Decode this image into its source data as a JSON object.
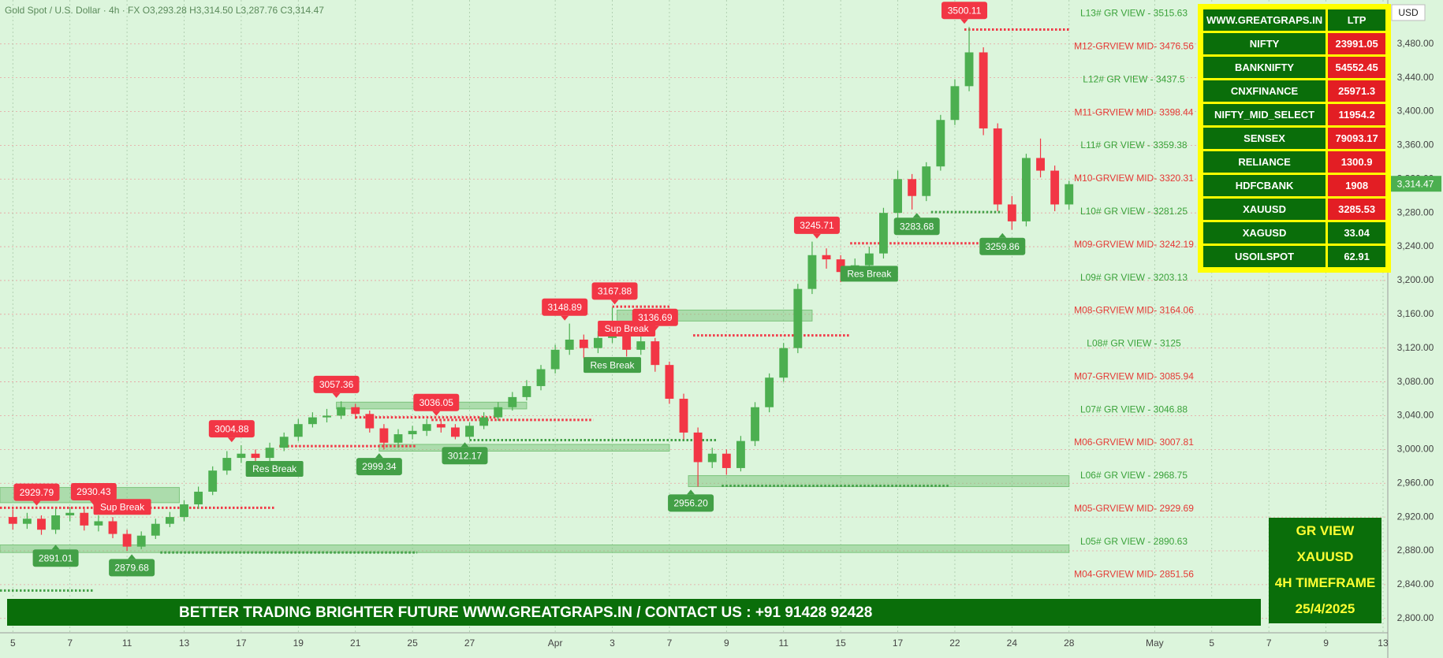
{
  "header": "Gold Spot / U.S. Dollar · 4h · FX  O3,293.28 H3,314.50 L3,287.76 C3,314.47",
  "chart_data": {
    "type": "candlestick",
    "x": [
      0,
      3,
      6,
      9,
      12,
      15,
      18,
      21,
      24,
      27,
      30,
      33,
      36,
      39,
      42,
      45,
      48,
      51,
      54,
      57,
      60,
      63,
      66,
      69,
      72,
      75,
      78,
      81,
      84,
      87,
      90,
      93,
      96,
      99,
      102,
      105,
      108,
      111,
      114,
      117,
      120,
      123,
      126,
      129,
      132,
      135,
      138,
      141,
      144,
      147,
      150,
      153,
      156,
      159,
      162,
      165,
      168,
      171,
      174,
      177,
      180,
      183,
      186,
      189,
      192,
      195,
      198,
      201,
      204,
      207,
      210,
      213,
      216,
      219,
      222
    ],
    "open": [
      2920,
      2912,
      2918,
      2905,
      2922,
      2925,
      2910,
      2915,
      2900,
      2885,
      2898,
      2912,
      2920,
      2935,
      2950,
      2975,
      2990,
      2995,
      2990,
      3002,
      3015,
      3030,
      3038,
      3040,
      3050,
      3042,
      3025,
      3008,
      3018,
      3022,
      3030,
      3026,
      3015,
      3028,
      3038,
      3050,
      3062,
      3075,
      3095,
      3118,
      3130,
      3120,
      3132,
      3140,
      3118,
      3128,
      3100,
      3060,
      3020,
      2985,
      2995,
      2978,
      3010,
      3050,
      3085,
      3120,
      3190,
      3230,
      3225,
      3210,
      3218,
      3232,
      3280,
      3320,
      3300,
      3335,
      3390,
      3430,
      3470,
      3380,
      3290,
      3270,
      3345,
      3330,
      3290
    ],
    "high": [
      2929,
      2925,
      2922,
      2930,
      2932,
      2930,
      2922,
      2920,
      2905,
      2903,
      2918,
      2926,
      2940,
      2956,
      2980,
      2998,
      3005,
      3000,
      3008,
      3020,
      3036,
      3044,
      3048,
      3057,
      3054,
      3046,
      3030,
      3024,
      3028,
      3036,
      3034,
      3030,
      3032,
      3044,
      3056,
      3068,
      3082,
      3100,
      3124,
      3149,
      3136,
      3140,
      3168,
      3146,
      3137,
      3132,
      3104,
      3066,
      3026,
      3002,
      3000,
      3016,
      3056,
      3090,
      3126,
      3196,
      3246,
      3238,
      3230,
      3226,
      3240,
      3286,
      3330,
      3326,
      3340,
      3396,
      3438,
      3500,
      3476,
      3386,
      3300,
      3350,
      3368,
      3336,
      3318
    ],
    "low": [
      2905,
      2906,
      2899,
      2900,
      2915,
      2904,
      2903,
      2895,
      2880,
      2882,
      2894,
      2908,
      2915,
      2930,
      2946,
      2970,
      2984,
      2982,
      2986,
      2998,
      3010,
      3026,
      3032,
      3036,
      3036,
      3020,
      3000,
      3002,
      3012,
      3016,
      3020,
      3012,
      3012,
      3024,
      3034,
      3046,
      3058,
      3070,
      3090,
      3112,
      3108,
      3114,
      3126,
      3110,
      3112,
      3092,
      3054,
      3012,
      2956,
      2978,
      2970,
      2974,
      3004,
      3044,
      3080,
      3114,
      3184,
      3214,
      3198,
      3204,
      3212,
      3226,
      3274,
      3284,
      3294,
      3330,
      3384,
      3424,
      3372,
      3282,
      3260,
      3264,
      3322,
      3282,
      3284
    ],
    "close": [
      2912,
      2918,
      2905,
      2922,
      2925,
      2910,
      2915,
      2900,
      2885,
      2898,
      2912,
      2920,
      2935,
      2950,
      2975,
      2990,
      2995,
      2990,
      3002,
      3015,
      3030,
      3038,
      3040,
      3050,
      3042,
      3025,
      3008,
      3018,
      3022,
      3030,
      3026,
      3015,
      3028,
      3038,
      3050,
      3062,
      3075,
      3095,
      3118,
      3130,
      3120,
      3132,
      3140,
      3118,
      3128,
      3100,
      3060,
      3020,
      2985,
      2995,
      2978,
      3010,
      3050,
      3085,
      3120,
      3190,
      3230,
      3225,
      3210,
      3218,
      3232,
      3280,
      3320,
      3300,
      3335,
      3390,
      3430,
      3470,
      3380,
      3290,
      3270,
      3345,
      3330,
      3290,
      3314
    ],
    "up_color": "#4caf50",
    "down_color": "#f23645",
    "xlim": [
      -2.7,
      289
    ],
    "xticks": [
      {
        "value": 0,
        "label": "5"
      },
      {
        "value": 12,
        "label": "7"
      },
      {
        "value": 24,
        "label": "11"
      },
      {
        "value": 36,
        "label": "13"
      },
      {
        "value": 48,
        "label": "17"
      },
      {
        "value": 60,
        "label": "19"
      },
      {
        "value": 72,
        "label": "21"
      },
      {
        "value": 84,
        "label": "25"
      },
      {
        "value": 96,
        "label": "27"
      },
      {
        "value": 114,
        "label": "Apr"
      },
      {
        "value": 126,
        "label": "3"
      },
      {
        "value": 138,
        "label": "7"
      },
      {
        "value": 150,
        "label": "9"
      },
      {
        "value": 162,
        "label": "11"
      },
      {
        "value": 174,
        "label": "15"
      },
      {
        "value": 186,
        "label": "17"
      },
      {
        "value": 198,
        "label": "22"
      },
      {
        "value": 210,
        "label": "24"
      },
      {
        "value": 222,
        "label": "28"
      },
      {
        "value": 240,
        "label": "May"
      },
      {
        "value": 252,
        "label": "5"
      },
      {
        "value": 264,
        "label": "7"
      },
      {
        "value": 276,
        "label": "9"
      },
      {
        "value": 288,
        "label": "13"
      }
    ],
    "ylim": [
      2783,
      3532
    ],
    "yticks": [
      {
        "value": 2800,
        "label": "2,800.00"
      },
      {
        "value": 2840,
        "label": "2,840.00"
      },
      {
        "value": 2880,
        "label": "2,880.00"
      },
      {
        "value": 2920,
        "label": "2,920.00"
      },
      {
        "value": 2960,
        "label": "2,960.00"
      },
      {
        "value": 3000,
        "label": "3,000.00"
      },
      {
        "value": 3040,
        "label": "3,040.00"
      },
      {
        "value": 3080,
        "label": "3,080.00"
      },
      {
        "value": 3120,
        "label": "3,120.00"
      },
      {
        "value": 3160,
        "label": "3,160.00"
      },
      {
        "value": 3200,
        "label": "3,200.00"
      },
      {
        "value": 3240,
        "label": "3,240.00"
      },
      {
        "value": 3280,
        "label": "3,280.00"
      },
      {
        "value": 3320,
        "label": "3,320.00"
      },
      {
        "value": 3360,
        "label": "3,360.00"
      },
      {
        "value": 3400,
        "label": "3,400.00"
      },
      {
        "value": 3440,
        "label": "3,440.00"
      },
      {
        "value": 3480,
        "label": "3,480.00"
      }
    ],
    "grid": true,
    "y_axis_label": "USD",
    "last_price": {
      "value": 3314.47,
      "label": "3,314.47"
    },
    "callouts": {
      "x": [
        5,
        17,
        9,
        25,
        46,
        68,
        77,
        89,
        95,
        116,
        126.5,
        135,
        142.5,
        169,
        190,
        200,
        208
      ],
      "values": [
        2929.79,
        2930.43,
        2891.01,
        2879.68,
        3004.88,
        3057.36,
        2999.34,
        3036.05,
        3012.17,
        3148.89,
        3167.88,
        3136.69,
        2956.2,
        3245.71,
        3283.68,
        3500.11,
        3259.86
      ],
      "value_labels": [
        "2929.79",
        "2930.43",
        "2891.01",
        "2879.68",
        "3004.88",
        "3057.36",
        "2999.34",
        "3036.05",
        "3012.17",
        "3148.89",
        "3167.88",
        "3136.69",
        "2956.20",
        "3245.71",
        "3283.68",
        "3500.11",
        "3259.86"
      ],
      "kinds": [
        "high",
        "high",
        "low",
        "low",
        "high",
        "high",
        "low",
        "high",
        "low",
        "high",
        "high",
        "high",
        "low",
        "high",
        "low",
        "high",
        "low"
      ],
      "high_color": "#f23645",
      "low_color": "#43a047"
    },
    "annotations": [
      {
        "x": 55,
        "y": 2977,
        "text": "Res Break",
        "color": "#43a047"
      },
      {
        "x": 126,
        "y": 3100,
        "text": "Res Break",
        "color": "#43a047"
      },
      {
        "x": 180,
        "y": 3208,
        "text": "Res Break",
        "color": "#43a047"
      },
      {
        "x": 23,
        "y": 2932,
        "text": "Sup Break",
        "color": "#f23645"
      },
      {
        "x": 129,
        "y": 3143,
        "text": "Sup Break",
        "color": "#f23645"
      }
    ],
    "levels": [
      {
        "value": 3515.63,
        "label": "L13# GR VIEW -  3515.63",
        "color": "#3aa23a"
      },
      {
        "value": 3476.56,
        "label": "M12-GRVIEW MID- 3476.56",
        "color": "#e53935"
      },
      {
        "value": 3437.5,
        "label": "L12# GR VIEW -  3437.5",
        "color": "#3aa23a"
      },
      {
        "value": 3398.44,
        "label": "M11-GRVIEW MID- 3398.44",
        "color": "#e53935"
      },
      {
        "value": 3359.38,
        "label": "L11# GR VIEW -  3359.38",
        "color": "#3aa23a"
      },
      {
        "value": 3320.31,
        "label": "M10-GRVIEW MID- 3320.31",
        "color": "#e53935"
      },
      {
        "value": 3281.25,
        "label": "L10# GR VIEW -  3281.25",
        "color": "#3aa23a"
      },
      {
        "value": 3242.19,
        "label": "M09-GRVIEW MID- 3242.19",
        "color": "#e53935"
      },
      {
        "value": 3203.13,
        "label": "L09# GR VIEW -  3203.13",
        "color": "#3aa23a"
      },
      {
        "value": 3164.06,
        "label": "M08-GRVIEW MID- 3164.06",
        "color": "#e53935"
      },
      {
        "value": 3125,
        "label": "L08# GR VIEW -  3125",
        "color": "#3aa23a"
      },
      {
        "value": 3085.94,
        "label": "M07-GRVIEW MID- 3085.94",
        "color": "#e53935"
      },
      {
        "value": 3046.88,
        "label": "L07# GR VIEW -  3046.88",
        "color": "#3aa23a"
      },
      {
        "value": 3007.81,
        "label": "M06-GRVIEW MID- 3007.81",
        "color": "#e53935"
      },
      {
        "value": 2968.75,
        "label": "L06# GR VIEW -  2968.75",
        "color": "#3aa23a"
      },
      {
        "value": 2929.69,
        "label": "M05-GRVIEW MID- 2929.69",
        "color": "#e53935"
      },
      {
        "value": 2890.63,
        "label": "L05# GR VIEW -  2890.63",
        "color": "#3aa23a"
      },
      {
        "value": 2851.56,
        "label": "M04-GRVIEW MID- 2851.56",
        "color": "#e53935"
      }
    ],
    "zones": [
      {
        "x": [
          -2.7,
          35
        ],
        "y": [
          2937,
          2955
        ]
      },
      {
        "x": [
          68,
          108
        ],
        "y": [
          3048,
          3056
        ]
      },
      {
        "x": [
          77,
          138
        ],
        "y": [
          2998,
          3006
        ]
      },
      {
        "x": [
          127,
          168
        ],
        "y": [
          3152,
          3165
        ]
      },
      {
        "x": [
          142,
          222
        ],
        "y": [
          2956,
          2969
        ]
      },
      {
        "x": [
          -2.7,
          222
        ],
        "y": [
          2878,
          2887
        ]
      }
    ],
    "zone_color": "#7cc47c",
    "dotted_lines": [
      {
        "x": [
          200,
          222
        ],
        "y": 3497,
        "color": "#f23645"
      },
      {
        "x": [
          193,
          208
        ],
        "y": 3281,
        "color": "#43a047"
      },
      {
        "x": [
          176,
          205
        ],
        "y": 3244,
        "color": "#f23645"
      },
      {
        "x": [
          143,
          176
        ],
        "y": 3135,
        "color": "#f23645"
      },
      {
        "x": [
          126,
          138
        ],
        "y": 3169,
        "color": "#f23645"
      },
      {
        "x": [
          72,
          102
        ],
        "y": 3038,
        "color": "#f23645"
      },
      {
        "x": [
          88,
          122
        ],
        "y": 3035,
        "color": "#f23645"
      },
      {
        "x": [
          56,
          85
        ],
        "y": 3004,
        "color": "#f23645"
      },
      {
        "x": [
          96,
          148
        ],
        "y": 3011,
        "color": "#43a047"
      },
      {
        "x": [
          -2.7,
          55
        ],
        "y": 2931,
        "color": "#f23645"
      },
      {
        "x": [
          31,
          85
        ],
        "y": 2878,
        "color": "#43a047"
      },
      {
        "x": [
          -2.7,
          17
        ],
        "y": 2833,
        "color": "#43a047"
      },
      {
        "x": [
          149,
          197
        ],
        "y": 2957,
        "color": "#43a047"
      }
    ]
  },
  "watchlist": {
    "columns": [
      "WWW.GREATGRAPS.IN",
      "LTP"
    ],
    "rows": [
      [
        "NIFTY",
        "23991.05"
      ],
      [
        "BANKNIFTY",
        "54552.45"
      ],
      [
        "CNXFINANCE",
        "25971.3"
      ],
      [
        "NIFTY_MID_SELECT",
        "11954.2"
      ],
      [
        "SENSEX",
        "79093.17"
      ],
      [
        "RELIANCE",
        "1300.9"
      ],
      [
        "HDFCBANK",
        "1908"
      ],
      [
        "XAUUSD",
        "3285.53"
      ],
      [
        "XAGUSD",
        "33.04"
      ],
      [
        "USOILSPOT",
        "62.91"
      ]
    ],
    "row_colors": [
      "#e31e24",
      "#e31e24",
      "#e31e24",
      "#e31e24",
      "#e31e24",
      "#e31e24",
      "#e31e24",
      "#e31e24",
      "#0a6e0a",
      "#0a6e0a"
    ]
  },
  "banner": {
    "slogan": "BETTER TRADING BRIGHTER FUTURE",
    "contact": "WWW.GREATGRAPS.IN / CONTACT US : +91 91428 92428"
  },
  "gr_box": {
    "lines": [
      "GR VIEW",
      "XAUUSD",
      "4H TIMEFRAME",
      "25/4/2025"
    ]
  }
}
